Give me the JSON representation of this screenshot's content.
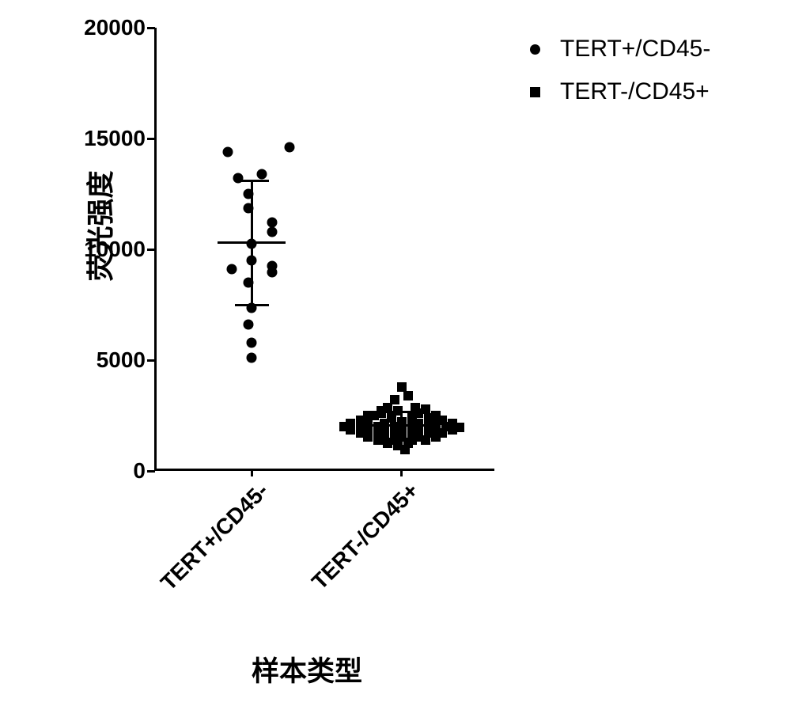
{
  "chart": {
    "type": "scatter",
    "background_color": "#ffffff",
    "axis_color": "#000000",
    "axis_width": 3,
    "tick_length": 10,
    "y_axis": {
      "label": "荧光强度",
      "label_fontsize": 35,
      "tick_fontsize": 28,
      "ylim": [
        0,
        20000
      ],
      "ticks": [
        0,
        5000,
        10000,
        15000,
        20000
      ]
    },
    "x_axis": {
      "label": "样本类型",
      "label_fontsize": 35,
      "tick_fontsize": 28,
      "categories": [
        "TERT+/CD45-",
        "TERT-/CD45+"
      ],
      "category_positions": [
        0.28,
        0.72
      ],
      "tick_label_rotation": -45
    },
    "series": [
      {
        "name": "TERT+/CD45-",
        "marker": "circle",
        "marker_size": 13,
        "color": "#000000",
        "x_position": 0.28,
        "points": [
          {
            "jx": -0.06,
            "y": 9100
          },
          {
            "jx": 0.06,
            "y": 9250
          },
          {
            "jx": -0.04,
            "y": 13200
          },
          {
            "jx": -0.01,
            "y": 12500
          },
          {
            "jx": -0.07,
            "y": 14380
          },
          {
            "jx": 0.11,
            "y": 14600
          },
          {
            "jx": 0.03,
            "y": 13400
          },
          {
            "jx": -0.01,
            "y": 11850
          },
          {
            "jx": 0.06,
            "y": 10780
          },
          {
            "jx": 0.0,
            "y": 10250
          },
          {
            "jx": 0.06,
            "y": 11200
          },
          {
            "jx": 0.0,
            "y": 9500
          },
          {
            "jx": -0.01,
            "y": 8500
          },
          {
            "jx": 0.06,
            "y": 8980
          },
          {
            "jx": 0.0,
            "y": 7350
          },
          {
            "jx": -0.01,
            "y": 6600
          },
          {
            "jx": 0.0,
            "y": 5800
          },
          {
            "jx": 0.0,
            "y": 5100
          }
        ],
        "mean": 10300,
        "error_upper": 13100,
        "error_lower": 7500,
        "error_cap_width": 0.1,
        "mean_cap_width": 0.2
      },
      {
        "name": "TERT-/CD45+",
        "marker": "square",
        "marker_size": 12,
        "color": "#000000",
        "x_position": 0.72,
        "points": [
          {
            "jx": 0.0,
            "y": 3800
          },
          {
            "jx": 0.02,
            "y": 3400
          },
          {
            "jx": -0.02,
            "y": 3200
          },
          {
            "jx": -0.04,
            "y": 2850
          },
          {
            "jx": 0.04,
            "y": 2850
          },
          {
            "jx": 0.07,
            "y": 2800
          },
          {
            "jx": -0.06,
            "y": 2700
          },
          {
            "jx": -0.01,
            "y": 2700
          },
          {
            "jx": 0.05,
            "y": 2600
          },
          {
            "jx": 0.1,
            "y": 2500
          },
          {
            "jx": -0.1,
            "y": 2500
          },
          {
            "jx": -0.08,
            "y": 2500
          },
          {
            "jx": -0.06,
            "y": 2600
          },
          {
            "jx": -0.12,
            "y": 2300
          },
          {
            "jx": -0.03,
            "y": 2380
          },
          {
            "jx": 0.03,
            "y": 2380
          },
          {
            "jx": 0.12,
            "y": 2300
          },
          {
            "jx": 0.08,
            "y": 2400
          },
          {
            "jx": -0.15,
            "y": 2150
          },
          {
            "jx": -0.1,
            "y": 2200
          },
          {
            "jx": -0.05,
            "y": 2150
          },
          {
            "jx": 0.0,
            "y": 2200
          },
          {
            "jx": 0.05,
            "y": 2150
          },
          {
            "jx": 0.1,
            "y": 2200
          },
          {
            "jx": 0.15,
            "y": 2150
          },
          {
            "jx": -0.17,
            "y": 2000
          },
          {
            "jx": -0.12,
            "y": 2000
          },
          {
            "jx": -0.07,
            "y": 2000
          },
          {
            "jx": -0.02,
            "y": 2000
          },
          {
            "jx": 0.03,
            "y": 2000
          },
          {
            "jx": 0.08,
            "y": 2000
          },
          {
            "jx": 0.13,
            "y": 2000
          },
          {
            "jx": 0.17,
            "y": 1960
          },
          {
            "jx": -0.15,
            "y": 1850
          },
          {
            "jx": -0.1,
            "y": 1850
          },
          {
            "jx": -0.05,
            "y": 1850
          },
          {
            "jx": 0.0,
            "y": 1850
          },
          {
            "jx": 0.05,
            "y": 1850
          },
          {
            "jx": 0.1,
            "y": 1850
          },
          {
            "jx": 0.15,
            "y": 1850
          },
          {
            "jx": -0.12,
            "y": 1700
          },
          {
            "jx": -0.07,
            "y": 1700
          },
          {
            "jx": -0.02,
            "y": 1700
          },
          {
            "jx": 0.03,
            "y": 1700
          },
          {
            "jx": 0.08,
            "y": 1700
          },
          {
            "jx": 0.12,
            "y": 1700
          },
          {
            "jx": -0.1,
            "y": 1550
          },
          {
            "jx": -0.05,
            "y": 1550
          },
          {
            "jx": 0.0,
            "y": 1550
          },
          {
            "jx": 0.05,
            "y": 1550
          },
          {
            "jx": 0.1,
            "y": 1550
          },
          {
            "jx": -0.07,
            "y": 1400
          },
          {
            "jx": -0.02,
            "y": 1400
          },
          {
            "jx": 0.03,
            "y": 1400
          },
          {
            "jx": 0.07,
            "y": 1400
          },
          {
            "jx": -0.04,
            "y": 1250
          },
          {
            "jx": 0.02,
            "y": 1250
          },
          {
            "jx": -0.01,
            "y": 1130
          },
          {
            "jx": 0.01,
            "y": 950
          }
        ],
        "mean": 2050,
        "error_upper": 2650,
        "error_lower": 1450,
        "error_cap_width": 0.1,
        "mean_cap_width": 0.2
      }
    ],
    "legend": {
      "items": [
        {
          "marker": "circle",
          "label": "TERT+/CD45-"
        },
        {
          "marker": "square",
          "label": "TERT-/CD45+"
        }
      ],
      "fontsize": 30
    }
  }
}
